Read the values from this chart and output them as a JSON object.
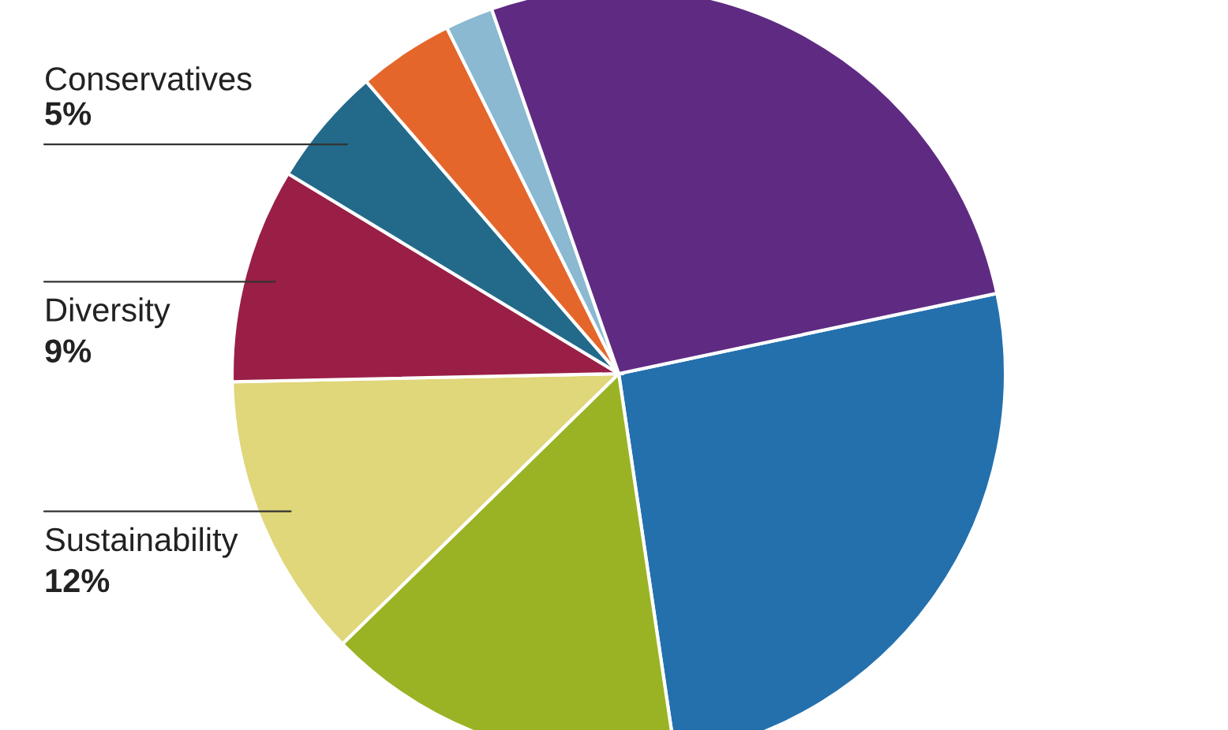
{
  "chart_data": {
    "type": "pie",
    "categories": [
      null,
      null,
      "Sustainability",
      "Diversity",
      "Conservatives",
      null,
      null,
      null
    ],
    "values": [
      26,
      15,
      12,
      9,
      5,
      4,
      2,
      27
    ],
    "colors": [
      "#2470ad",
      "#9ab324",
      "#e0d67a",
      "#9a1f46",
      "#236a8a",
      "#e5662a",
      "#8ab9d1",
      "#5e2a82"
    ],
    "value_labels": [
      null,
      null,
      "12%",
      "9%",
      "5%",
      null,
      null,
      null
    ],
    "legend": false
  }
}
